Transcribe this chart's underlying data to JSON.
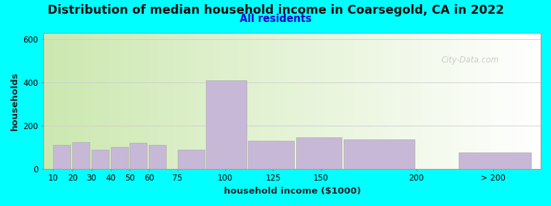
{
  "title": "Distribution of median household income in Coarsegold, CA in 2022",
  "subtitle": "All residents",
  "xlabel": "household income ($1000)",
  "ylabel": "households",
  "bg_outer": "#00FFFF",
  "bg_grad_left": "#cce8b0",
  "bg_grad_right": "#ffffff",
  "bar_color": "#c8b8d8",
  "bar_edge_color": "#aaaaaa",
  "watermark": "City-Data.com",
  "categories": [
    "10",
    "20",
    "30",
    "40",
    "50",
    "60",
    "75",
    "100",
    "125",
    "150",
    "200",
    "> 200"
  ],
  "bar_lefts": [
    10,
    20,
    30,
    40,
    50,
    60,
    75,
    90,
    112,
    137,
    162,
    222
  ],
  "bar_widths": [
    9,
    9,
    9,
    9,
    9,
    9,
    14,
    21,
    24,
    24,
    37,
    38
  ],
  "values": [
    110,
    125,
    90,
    100,
    120,
    110,
    90,
    410,
    130,
    145,
    135,
    75
  ],
  "xtick_pos": [
    10,
    20,
    30,
    40,
    50,
    60,
    75,
    100,
    125,
    150,
    200,
    240
  ],
  "xtick_labels": [
    "10",
    "20",
    "30",
    "40",
    "50",
    "60",
    "75",
    "100",
    "125",
    "150",
    "200",
    "> 200"
  ],
  "yticks": [
    0,
    200,
    400,
    600
  ],
  "xlim": [
    5,
    265
  ],
  "ylim": [
    0,
    630
  ],
  "title_fontsize": 12.5,
  "subtitle_fontsize": 10.5,
  "label_fontsize": 9.5,
  "tick_fontsize": 8.5
}
